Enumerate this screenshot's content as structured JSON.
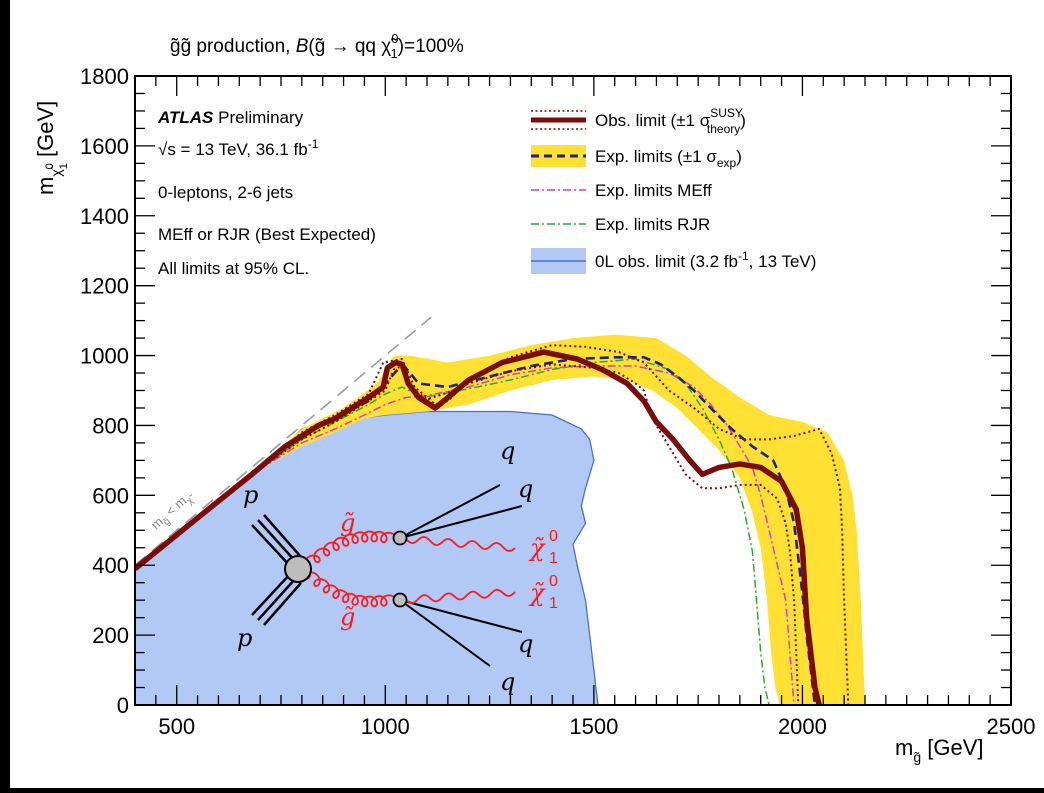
{
  "header": {
    "process_pre": "g̃g̃ production, ",
    "process_B": "B",
    "process_mid": "(g̃ → qq ",
    "process_chi": "χ̃",
    "process_sup": "0",
    "process_sub": "1",
    "process_post": ")=100%"
  },
  "info": {
    "atlas": "ATLAS",
    "preliminary": "Preliminary",
    "energy": "√s = 13 TeV, 36.1 fb",
    "energy_sup": "-1",
    "selection": "0-leptons, 2-6 jets",
    "method": "MEff or RJR (Best Expected)",
    "cl": "All limits at 95% CL."
  },
  "legend": {
    "obs_pre": "Obs. limit (±1 σ",
    "obs_sup": "SUSY",
    "obs_sub": "theory",
    "obs_post": ")",
    "exp_pre": "Exp. limits (±1 σ",
    "exp_sub": "exp",
    "exp_post": ")",
    "meff": "Exp. limits MEff",
    "rjr": "Exp. limits RJR",
    "old_pre": "0L obs. limit (3.2 fb",
    "old_sup": "-1",
    "old_post": ", 13 TeV)"
  },
  "axes": {
    "xlabel": "m",
    "xlabel_sub": "g̃",
    "xlabel_unit": " [GeV]",
    "ylabel": "m",
    "ylabel_sub": "χ̃",
    "ylabel_sub_sup": "0",
    "ylabel_sub_sub": "1",
    "ylabel_unit": " [GeV]",
    "diag_label": "m",
    "diag_sub_a": "g̃",
    "diag_lt": " < m",
    "diag_sub_b": "χ̃"
  },
  "feynman": {
    "p_top": "p",
    "p_bottom": "p",
    "gluino_top": "g̃",
    "gluino_bottom": "g̃",
    "q1": "q",
    "q2": "q",
    "q3": "q",
    "q4": "q",
    "chi_top": "χ̃",
    "chi_bottom": "χ̃",
    "chi_sup": "0",
    "chi_sub": "1"
  },
  "colors": {
    "observed": "#7a0c0c",
    "expected": "#1a237e",
    "band": "#ffe033",
    "meff": "#d63ad6",
    "rjr": "#2ea82e",
    "old_fill": "#b2c8f5",
    "old_line": "#4a6fd1",
    "feynman": "#ff1a1a"
  },
  "chart_data": {
    "type": "line",
    "title": "g̃g̃ production, B(g̃ → qq χ̃⁰₁)=100%",
    "xlabel": "m_g̃ [GeV]",
    "ylabel": "m_χ̃⁰₁ [GeV]",
    "xlim": [
      400,
      2500
    ],
    "ylim": [
      0,
      1800
    ],
    "xticks": [
      500,
      1000,
      1500,
      2000,
      2500
    ],
    "yticks": [
      0,
      200,
      400,
      600,
      800,
      1000,
      1200,
      1400,
      1600,
      1800
    ],
    "legend_position": "top-right",
    "series": [
      {
        "name": "Obs. limit (±1 σ SUSY theory)",
        "style": "solid-thick",
        "x": [
          400,
          560,
          680,
          720,
          760,
          800,
          840,
          880,
          920,
          960,
          995,
          1005,
          1025,
          1040,
          1055,
          1080,
          1120,
          1150,
          1200,
          1280,
          1380,
          1460,
          1520,
          1580,
          1620,
          1650,
          1690,
          1730,
          1760,
          1800,
          1850,
          1900,
          1950,
          1985,
          2000,
          2005,
          2010,
          2020,
          2030,
          2040
        ],
        "y": [
          390,
          545,
          660,
          700,
          740,
          770,
          800,
          820,
          850,
          880,
          910,
          965,
          980,
          975,
          920,
          880,
          850,
          880,
          930,
          980,
          1010,
          990,
          960,
          920,
          870,
          810,
          760,
          700,
          660,
          680,
          690,
          680,
          640,
          560,
          450,
          350,
          250,
          150,
          50,
          0
        ]
      },
      {
        "name": "Obs. limit −1σ theory",
        "style": "dotted",
        "x": [
          400,
          560,
          680,
          800,
          880,
          960,
          1000,
          1020,
          1040,
          1060,
          1100,
          1140,
          1200,
          1300,
          1400,
          1500,
          1560,
          1600,
          1620,
          1640,
          1680,
          1720,
          1760,
          1800,
          1850,
          1900,
          1940,
          1960,
          1970,
          1980,
          1985,
          1990
        ],
        "y": [
          390,
          545,
          660,
          760,
          810,
          870,
          900,
          960,
          970,
          910,
          875,
          890,
          920,
          955,
          975,
          965,
          950,
          920,
          900,
          820,
          740,
          660,
          620,
          620,
          630,
          630,
          590,
          520,
          440,
          300,
          150,
          0
        ]
      },
      {
        "name": "Obs. limit +1σ theory",
        "style": "dotted",
        "x": [
          400,
          560,
          680,
          800,
          880,
          960,
          995,
          1040,
          1070,
          1120,
          1150,
          1200,
          1300,
          1400,
          1480,
          1560,
          1620,
          1680,
          1740,
          1800,
          1860,
          1920,
          1980,
          2040,
          2070,
          2090,
          2095,
          2100,
          2105,
          2110
        ],
        "y": [
          390,
          545,
          660,
          780,
          830,
          890,
          980,
          990,
          910,
          860,
          870,
          930,
          995,
          1030,
          1025,
          1010,
          980,
          900,
          850,
          790,
          760,
          760,
          770,
          790,
          720,
          620,
          500,
          300,
          150,
          0
        ]
      },
      {
        "name": "Exp. limits (±1 σ exp)",
        "style": "dashed",
        "x": [
          400,
          560,
          680,
          800,
          880,
          960,
          1000,
          1030,
          1045,
          1080,
          1150,
          1250,
          1350,
          1450,
          1550,
          1620,
          1660,
          1700,
          1740,
          1780,
          1830,
          1880,
          1930,
          1960,
          1980,
          1990,
          2000,
          2010,
          2020,
          2030
        ],
        "y": [
          390,
          545,
          660,
          770,
          820,
          870,
          920,
          960,
          970,
          920,
          910,
          940,
          970,
          990,
          995,
          995,
          975,
          940,
          900,
          850,
          790,
          740,
          700,
          620,
          520,
          420,
          320,
          200,
          100,
          0
        ]
      },
      {
        "name": "Exp. limits MEff",
        "style": "dash-dot",
        "x": [
          400,
          560,
          680,
          800,
          880,
          950,
          1000,
          1050,
          1100,
          1200,
          1300,
          1400,
          1500,
          1600,
          1680,
          1740,
          1780,
          1820,
          1850,
          1880,
          1900,
          1920,
          1940,
          1960,
          1970,
          1980
        ],
        "y": [
          390,
          545,
          660,
          750,
          790,
          830,
          860,
          880,
          885,
          910,
          945,
          965,
          970,
          970,
          950,
          910,
          860,
          800,
          740,
          680,
          600,
          500,
          400,
          300,
          150,
          0
        ]
      },
      {
        "name": "Exp. limits RJR",
        "style": "dash-dot",
        "x": [
          400,
          560,
          680,
          800,
          880,
          960,
          1000,
          1040,
          1090,
          1200,
          1300,
          1400,
          1500,
          1600,
          1680,
          1720,
          1760,
          1800,
          1830,
          1860,
          1880,
          1890,
          1900,
          1910,
          1920
        ],
        "y": [
          390,
          545,
          660,
          760,
          810,
          860,
          890,
          910,
          880,
          905,
          930,
          960,
          980,
          990,
          960,
          920,
          850,
          760,
          680,
          560,
          440,
          300,
          150,
          50,
          0
        ]
      },
      {
        "name": "0L obs. limit (3.2 fb⁻¹, 13 TeV)",
        "style": "filled",
        "x": [
          400,
          560,
          680,
          760,
          800,
          850,
          900,
          1000,
          1100,
          1200,
          1300,
          1400,
          1470,
          1490,
          1500,
          1480,
          1470,
          1480,
          1450,
          1460,
          1480,
          1490,
          1500,
          1505,
          1510
        ],
        "y": [
          390,
          550,
          660,
          740,
          790,
          810,
          815,
          830,
          840,
          840,
          840,
          830,
          790,
          760,
          700,
          620,
          570,
          520,
          460,
          400,
          300,
          200,
          100,
          50,
          0
        ]
      }
    ],
    "band": {
      "name": "Exp. ±1σ exp band",
      "upper_x": [
        400,
        560,
        680,
        800,
        900,
        980,
        1020,
        1060,
        1150,
        1250,
        1350,
        1450,
        1550,
        1650,
        1720,
        1780,
        1850,
        1920,
        2000,
        2060,
        2100,
        2120,
        2130,
        2140,
        2145,
        2150
      ],
      "upper_y": [
        390,
        545,
        660,
        790,
        850,
        920,
        1000,
        1000,
        980,
        1000,
        1030,
        1050,
        1060,
        1050,
        1000,
        940,
        880,
        830,
        810,
        780,
        700,
        600,
        500,
        300,
        150,
        0
      ],
      "lower_x": [
        400,
        560,
        680,
        800,
        880,
        950,
        1000,
        1100,
        1200,
        1300,
        1400,
        1500,
        1580,
        1640,
        1700,
        1750,
        1800,
        1850,
        1880,
        1900,
        1915,
        1925,
        1935,
        1945
      ],
      "lower_y": [
        390,
        545,
        660,
        740,
        780,
        820,
        830,
        840,
        860,
        900,
        930,
        940,
        930,
        900,
        850,
        790,
        730,
        650,
        550,
        450,
        300,
        150,
        50,
        0
      ]
    },
    "diagonal": {
      "name": "m_g̃ < m_χ̃⁰₁",
      "x": [
        400,
        1110
      ],
      "y": [
        400,
        1110
      ]
    }
  }
}
